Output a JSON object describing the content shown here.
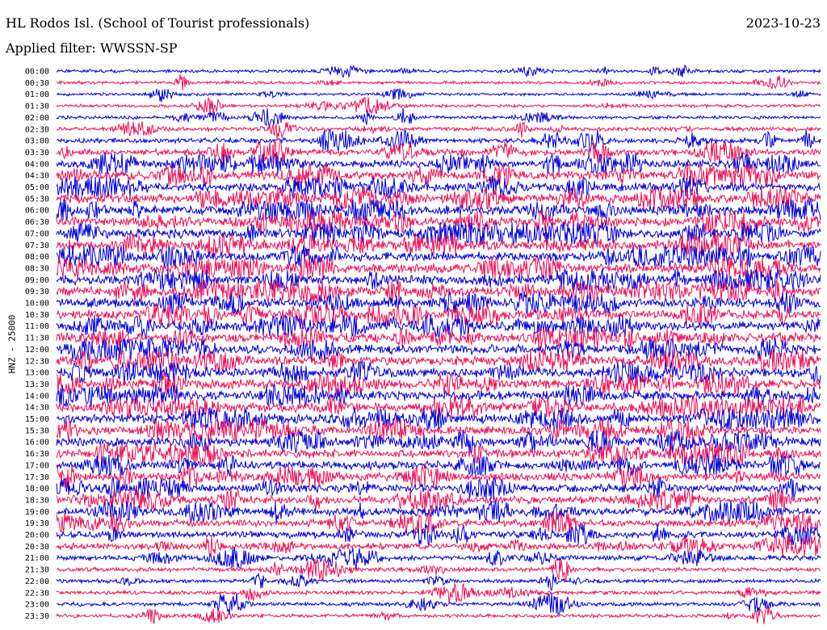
{
  "header": {
    "station": "HL Rodos Isl. (School of Tourist professionals)",
    "date": "2023-10-23",
    "filter": "Applied filter: WWSSN-SP"
  },
  "channel_label": "HNZ - 25000",
  "chart_data": {
    "type": "line",
    "title": "",
    "ylabel": "HNZ - 25000",
    "colors": [
      "#0000dd",
      "#ee1155"
    ],
    "rows": [
      {
        "time": "00:00",
        "activity": 0.25
      },
      {
        "time": "00:30",
        "activity": 0.22
      },
      {
        "time": "01:00",
        "activity": 0.18
      },
      {
        "time": "01:30",
        "activity": 0.22
      },
      {
        "time": "02:00",
        "activity": 0.25
      },
      {
        "time": "02:30",
        "activity": 0.35
      },
      {
        "time": "03:00",
        "activity": 0.45
      },
      {
        "time": "03:30",
        "activity": 0.6
      },
      {
        "time": "04:00",
        "activity": 0.75
      },
      {
        "time": "04:30",
        "activity": 0.85
      },
      {
        "time": "05:00",
        "activity": 0.9
      },
      {
        "time": "05:30",
        "activity": 0.95
      },
      {
        "time": "06:00",
        "activity": 0.95
      },
      {
        "time": "06:30",
        "activity": 0.95
      },
      {
        "time": "07:00",
        "activity": 0.95
      },
      {
        "time": "07:30",
        "activity": 0.95
      },
      {
        "time": "08:00",
        "activity": 0.95
      },
      {
        "time": "08:30",
        "activity": 0.95
      },
      {
        "time": "09:00",
        "activity": 0.95
      },
      {
        "time": "09:30",
        "activity": 0.95
      },
      {
        "time": "10:00",
        "activity": 0.95
      },
      {
        "time": "10:30",
        "activity": 0.95
      },
      {
        "time": "11:00",
        "activity": 0.95
      },
      {
        "time": "11:30",
        "activity": 0.95
      },
      {
        "time": "12:00",
        "activity": 0.95
      },
      {
        "time": "12:30",
        "activity": 0.95
      },
      {
        "time": "13:00",
        "activity": 0.95
      },
      {
        "time": "13:30",
        "activity": 0.95
      },
      {
        "time": "14:00",
        "activity": 0.95
      },
      {
        "time": "14:30",
        "activity": 0.95
      },
      {
        "time": "15:00",
        "activity": 0.95
      },
      {
        "time": "15:30",
        "activity": 0.9
      },
      {
        "time": "16:00",
        "activity": 0.9
      },
      {
        "time": "16:30",
        "activity": 0.85
      },
      {
        "time": "17:00",
        "activity": 0.8
      },
      {
        "time": "17:30",
        "activity": 0.8
      },
      {
        "time": "18:00",
        "activity": 0.8
      },
      {
        "time": "18:30",
        "activity": 0.75
      },
      {
        "time": "19:00",
        "activity": 0.75
      },
      {
        "time": "19:30",
        "activity": 0.7
      },
      {
        "time": "20:00",
        "activity": 0.65
      },
      {
        "time": "20:30",
        "activity": 0.6
      },
      {
        "time": "21:00",
        "activity": 0.45
      },
      {
        "time": "21:30",
        "activity": 0.35
      },
      {
        "time": "22:00",
        "activity": 0.3
      },
      {
        "time": "22:30",
        "activity": 0.3
      },
      {
        "time": "23:00",
        "activity": 0.3
      },
      {
        "time": "23:30",
        "activity": 0.28
      }
    ]
  }
}
